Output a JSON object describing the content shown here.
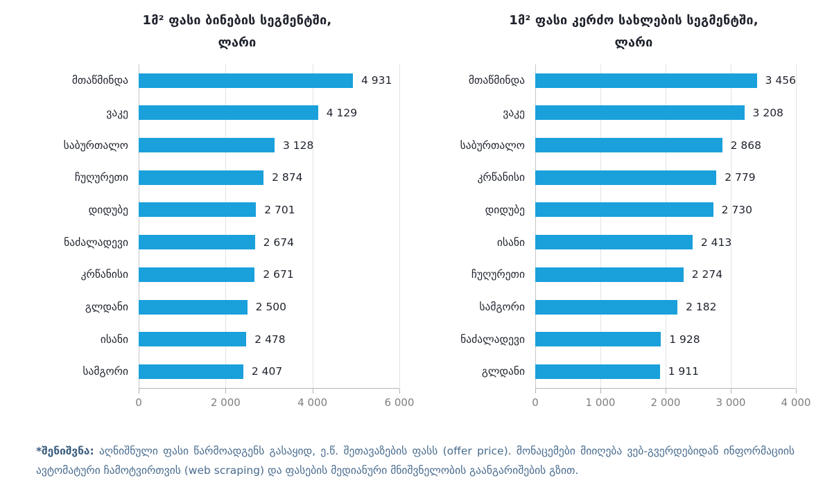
{
  "colors": {
    "bar": "#1aa0db",
    "title_text": "#1e222c",
    "axis_text": "#7e7e7e",
    "gridline": "#e3e3e3",
    "axis_line": "#b3b3b3",
    "footnote_text": "#476b8e"
  },
  "chart_data": [
    {
      "type": "bar",
      "orientation": "horizontal",
      "title": "1მ² ფასი ბინების სეგმენტში,",
      "subtitle": "ლარი",
      "categories": [
        "მთაწმინდა",
        "ვაკე",
        "საბურთალო",
        "ჩუღურეთი",
        "დიდუბე",
        "ნაძალადევი",
        "კრწანისი",
        "გლდანი",
        "ისანი",
        "სამგორი"
      ],
      "values": [
        4931,
        4129,
        3128,
        2874,
        2701,
        2674,
        2671,
        2500,
        2478,
        2407
      ],
      "value_labels": [
        "4 931",
        "4 129",
        "3 128",
        "2 874",
        "2 701",
        "2 674",
        "2 671",
        "2 500",
        "2 478",
        "2 407"
      ],
      "xlim": [
        0,
        6000
      ],
      "tick_values": [
        0,
        2000,
        4000,
        6000
      ],
      "tick_labels": [
        "0",
        "2 000",
        "4 000",
        "6 000"
      ],
      "grid": true,
      "legend": false
    },
    {
      "type": "bar",
      "orientation": "horizontal",
      "title": "1მ² ფასი კერძო სახლების სეგმენტში,",
      "subtitle": "ლარი",
      "categories": [
        "მთაწმინდა",
        "ვაკე",
        "საბურთალო",
        "კრწანისი",
        "დიდუბე",
        "ისანი",
        "ჩუღურეთი",
        "სამგორი",
        "ნაძალადევი",
        "გლდანი"
      ],
      "values": [
        3456,
        3208,
        2868,
        2779,
        2730,
        2413,
        2274,
        2182,
        1928,
        1911
      ],
      "value_labels": [
        "3 456",
        "3 208",
        "2 868",
        "2 779",
        "2 730",
        "2 413",
        "2 274",
        "2 182",
        "1 928",
        "1 911"
      ],
      "xlim": [
        0,
        4000
      ],
      "tick_values": [
        0,
        1000,
        2000,
        3000,
        4000
      ],
      "tick_labels": [
        "0",
        "1 000",
        "2 000",
        "3 000",
        "4 000"
      ],
      "grid": true,
      "legend": false
    }
  ],
  "footnote": {
    "prefix": "*შენიშვნა:",
    "text": " აღნიშნული ფასი წარმოადგენს გასაყიდ, ე.წ. შეთავაზების ფასს (offer price). მონაცემები მიიღება ვებ-გვერდებიდან ინფორმაციის ავტომატური ჩამოტვირთვის (web scraping) და ფასების მედიანური მნიშვნელობის გაანგარიშების გზით."
  }
}
